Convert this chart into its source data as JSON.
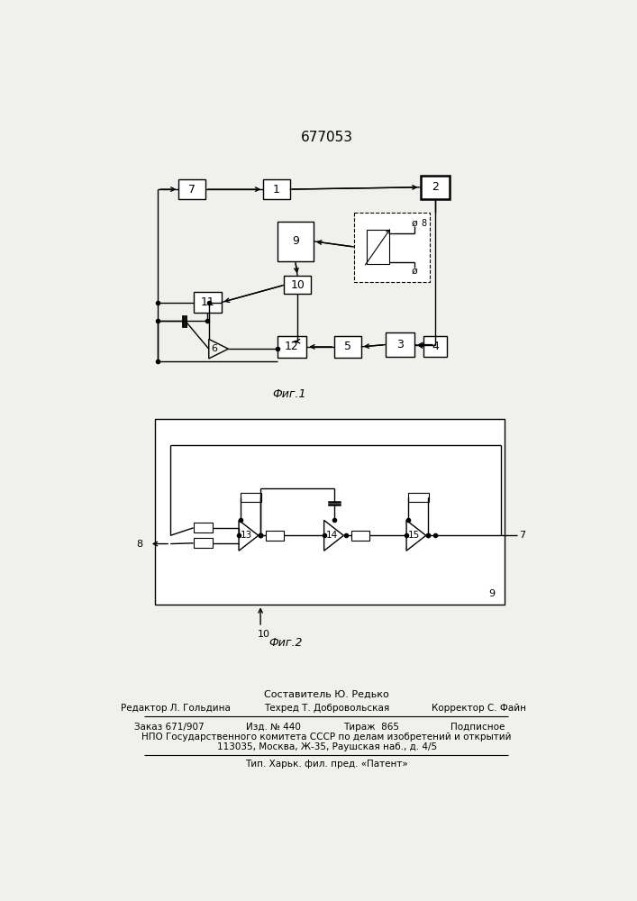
{
  "title": "677053",
  "fig1_caption": "Фиг.1",
  "fig2_caption": "Фиг.2",
  "footer_line1": "Составитель Ю. Редько",
  "footer_line2_left": "Редактор Л. Гольдина",
  "footer_line2_mid": "Техред Т. Добровольская",
  "footer_line2_right": "Корректор С. Файн",
  "footer_line3_left": "Заказ 671/907",
  "footer_line3_mid1": "Изд. № 440",
  "footer_line3_mid2": "Тираж  865",
  "footer_line3_right": "Подписное",
  "footer_line4": "НПО Государственного комитета СССР по делам изобретений и открытий",
  "footer_line5": "113035, Москва, Ж-35, Раушская наб., д. 4/5",
  "footer_line6": "Тип. Харьк. фил. пред. «Патент»",
  "bg_color": "#f0f0ec"
}
